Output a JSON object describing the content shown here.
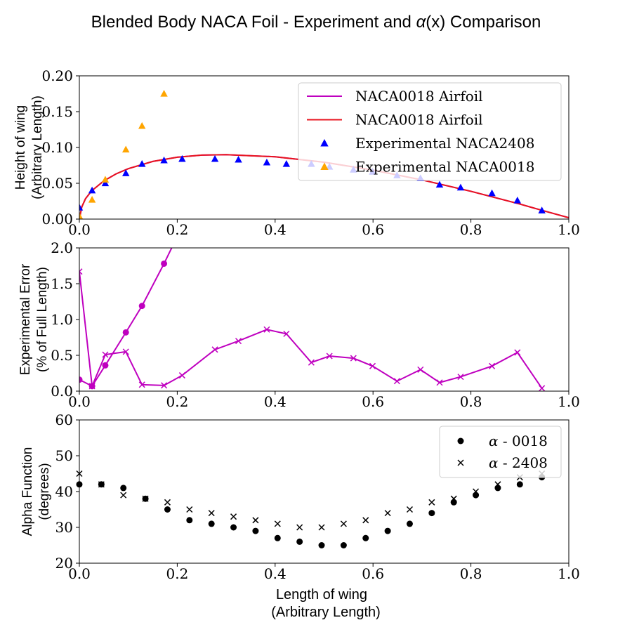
{
  "figure": {
    "title_prefix": "Blended Body NACA Foil - Experiment and ",
    "title_alpha": "α",
    "title_suffix": "(x) Comparison",
    "xlabel_line1": "Length of wing",
    "xlabel_line2": "(Arbitrary Length)"
  },
  "chart_data": [
    {
      "type": "scatter",
      "panel": "top",
      "ylabel": [
        "Height of wing",
        "(Arbitrary Length)"
      ],
      "xlim": [
        0,
        1.0
      ],
      "ylim": [
        0,
        0.2
      ],
      "xticks": [
        "0.0",
        "0.2",
        "0.4",
        "0.6",
        "0.8",
        "1.0"
      ],
      "yticks": [
        "0.00",
        "0.05",
        "0.10",
        "0.15",
        "0.20"
      ],
      "legend_position": "upper-right",
      "series": [
        {
          "name": "NACA0018 Airfoil",
          "kind": "line",
          "color": "#bf00bf",
          "x": [
            0,
            0.005,
            0.0125,
            0.025,
            0.05,
            0.075,
            0.1,
            0.15,
            0.2,
            0.25,
            0.3,
            0.4,
            0.5,
            0.6,
            0.7,
            0.8,
            0.9,
            0.95,
            1.0
          ],
          "y": [
            0,
            0.017,
            0.0284,
            0.0393,
            0.0533,
            0.0631,
            0.0704,
            0.0805,
            0.0864,
            0.0893,
            0.09,
            0.087,
            0.0794,
            0.0684,
            0.0547,
            0.0388,
            0.021,
            0.0113,
            0.0019
          ]
        },
        {
          "name": "NACA0018 Airfoil",
          "kind": "line",
          "color": "#e8141e",
          "x": [
            0,
            0.005,
            0.0125,
            0.025,
            0.05,
            0.075,
            0.1,
            0.15,
            0.2,
            0.25,
            0.3,
            0.4,
            0.5,
            0.6,
            0.7,
            0.8,
            0.9,
            0.95,
            1.0
          ],
          "y": [
            0,
            0.017,
            0.0284,
            0.0393,
            0.0533,
            0.0631,
            0.0704,
            0.0805,
            0.0864,
            0.0893,
            0.09,
            0.087,
            0.0794,
            0.0684,
            0.0547,
            0.0388,
            0.021,
            0.0113,
            0.0019
          ]
        },
        {
          "name": "Experimental NACA2408",
          "kind": "triangle",
          "color": "#0000ff",
          "x": [
            0.0,
            0.026,
            0.053,
            0.095,
            0.128,
            0.173,
            0.21,
            0.277,
            0.325,
            0.383,
            0.423,
            0.474,
            0.511,
            0.56,
            0.599,
            0.649,
            0.697,
            0.736,
            0.779,
            0.843,
            0.895,
            0.945
          ],
          "y": [
            0.016,
            0.04,
            0.05,
            0.064,
            0.077,
            0.082,
            0.084,
            0.084,
            0.083,
            0.079,
            0.077,
            0.077,
            0.073,
            0.069,
            0.066,
            0.061,
            0.057,
            0.048,
            0.044,
            0.036,
            0.026,
            0.012
          ]
        },
        {
          "name": "Experimental NACA0018",
          "kind": "triangle",
          "color": "#ffa500",
          "x": [
            0.0,
            0.026,
            0.053,
            0.095,
            0.128,
            0.173
          ],
          "y": [
            0.004,
            0.027,
            0.055,
            0.097,
            0.13,
            0.175
          ]
        }
      ]
    },
    {
      "type": "line",
      "panel": "middle",
      "ylabel": [
        "Experimental Error",
        "(% of Full Length)"
      ],
      "xlim": [
        0,
        1.0
      ],
      "ylim": [
        0,
        2.0
      ],
      "xticks": [
        "0.0",
        "0.2",
        "0.4",
        "0.6",
        "0.8",
        "1.0"
      ],
      "yticks": [
        "0.0",
        "0.5",
        "1.0",
        "1.5",
        "2.0"
      ],
      "series": [
        {
          "marker": "circle",
          "color": "#bf00bf",
          "x": [
            0.0,
            0.026,
            0.053,
            0.095,
            0.128,
            0.173,
            0.21
          ],
          "y": [
            0.16,
            0.07,
            0.36,
            0.82,
            1.19,
            1.78,
            2.3
          ]
        },
        {
          "marker": "x",
          "color": "#bf00bf",
          "x": [
            0.0,
            0.026,
            0.053,
            0.095,
            0.128,
            0.173,
            0.21,
            0.277,
            0.325,
            0.383,
            0.423,
            0.474,
            0.511,
            0.56,
            0.599,
            0.649,
            0.697,
            0.736,
            0.779,
            0.843,
            0.895,
            0.945
          ],
          "y": [
            1.67,
            0.07,
            0.51,
            0.55,
            0.09,
            0.08,
            0.22,
            0.58,
            0.7,
            0.86,
            0.8,
            0.4,
            0.49,
            0.46,
            0.35,
            0.14,
            0.3,
            0.12,
            0.2,
            0.35,
            0.54,
            0.04
          ]
        }
      ]
    },
    {
      "type": "scatter",
      "panel": "bottom",
      "ylabel": [
        "Alpha Function",
        "(degrees)"
      ],
      "xlim": [
        0,
        1.0
      ],
      "ylim": [
        20,
        60
      ],
      "xticks": [
        "0.0",
        "0.2",
        "0.4",
        "0.6",
        "0.8",
        "1.0"
      ],
      "yticks": [
        "20",
        "30",
        "40",
        "50",
        "60"
      ],
      "legend_position": "upper-right",
      "series": [
        {
          "name_symbol": "α",
          "name_rest": " - 0018",
          "marker": "circle",
          "color": "#000000",
          "x": [
            0.0,
            0.045,
            0.09,
            0.135,
            0.18,
            0.225,
            0.27,
            0.315,
            0.36,
            0.405,
            0.45,
            0.495,
            0.54,
            0.585,
            0.63,
            0.675,
            0.72,
            0.765,
            0.81,
            0.855,
            0.9,
            0.945
          ],
          "y": [
            42,
            42,
            41,
            38,
            35,
            32,
            31,
            30,
            29,
            27,
            26,
            25,
            25,
            27,
            29,
            31,
            34,
            37,
            39,
            41,
            42,
            44
          ]
        },
        {
          "name_symbol": "α",
          "name_rest": " - 2408",
          "marker": "x",
          "color": "#000000",
          "x": [
            0.0,
            0.045,
            0.09,
            0.135,
            0.18,
            0.225,
            0.27,
            0.315,
            0.36,
            0.405,
            0.45,
            0.495,
            0.54,
            0.585,
            0.63,
            0.675,
            0.72,
            0.765,
            0.81,
            0.855,
            0.9,
            0.945
          ],
          "y": [
            45,
            42,
            39,
            38,
            37,
            35,
            34,
            33,
            32,
            31,
            30,
            30,
            31,
            32,
            34,
            35,
            37,
            38,
            40,
            42,
            44,
            45
          ]
        }
      ]
    }
  ]
}
